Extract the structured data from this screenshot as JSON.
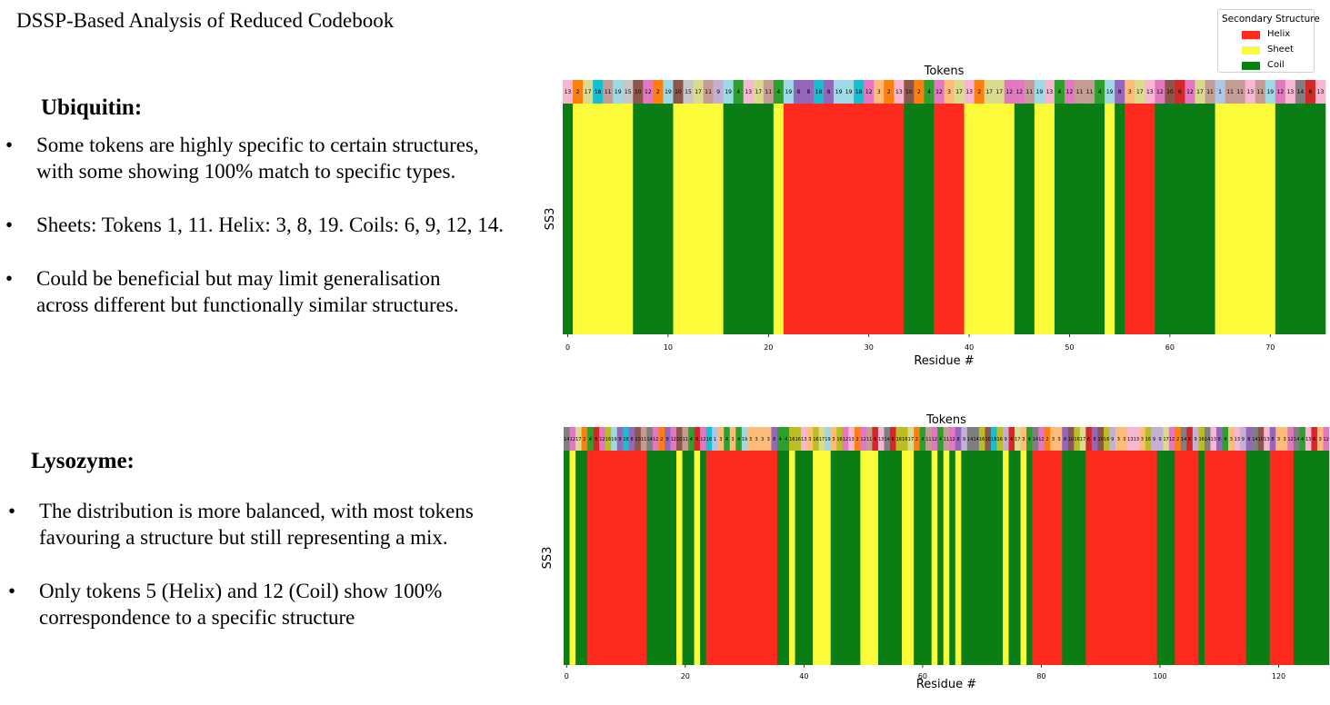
{
  "slide_title": "DSSP-Based Analysis of Reduced Codebook",
  "colors": {
    "helix": "#ff2a1e",
    "sheet": "#fbfb3a",
    "coil": "#0a7e14"
  },
  "legend": {
    "title": "Secondary Structure",
    "items": [
      {
        "label": "Helix",
        "color": "#ff2a1e"
      },
      {
        "label": "Sheet",
        "color": "#fbfb3a"
      },
      {
        "label": "Coil",
        "color": "#0a7e14"
      }
    ]
  },
  "ubiquitin": {
    "heading": "Ubiquitin:",
    "bullets": [
      {
        "line1": "Some tokens are highly specific to certain structures,",
        "line2": "with some showing 100% match to specific types."
      },
      {
        "line1": " Sheets: Tokens 1, 11. Helix: 3, 8, 19. Coils: 6, 9, 12, 14.",
        "line2": ""
      },
      {
        "line1": "Could be beneficial but may limit generalisation",
        "line2": "across different but functionally similar structures."
      }
    ]
  },
  "lysozyme": {
    "heading": "Lysozyme:",
    "bullets": [
      {
        "line1": "The distribution is more balanced, with most tokens",
        "line2": "favouring a structure but still representing a mix."
      },
      {
        "line1": "Only tokens 5 (Helix) and 12 (Coil) show 100%",
        "line2": "correspondence to a specific structure"
      }
    ]
  },
  "chart_data": [
    {
      "type": "heatmap",
      "title": "Tokens",
      "xlabel": "Residue #",
      "ylabel": "SS3",
      "xlim": [
        0,
        76
      ],
      "xticks": [
        0,
        10,
        20,
        30,
        40,
        50,
        60,
        70
      ],
      "ss_segments": [
        {
          "ss": "C",
          "start": 0,
          "end": 0
        },
        {
          "ss": "E",
          "start": 1,
          "end": 6
        },
        {
          "ss": "C",
          "start": 7,
          "end": 10
        },
        {
          "ss": "E",
          "start": 11,
          "end": 15
        },
        {
          "ss": "C",
          "start": 16,
          "end": 20
        },
        {
          "ss": "E",
          "start": 21,
          "end": 21
        },
        {
          "ss": "H",
          "start": 22,
          "end": 33
        },
        {
          "ss": "C",
          "start": 34,
          "end": 36
        },
        {
          "ss": "H",
          "start": 37,
          "end": 39
        },
        {
          "ss": "E",
          "start": 40,
          "end": 44
        },
        {
          "ss": "C",
          "start": 45,
          "end": 46
        },
        {
          "ss": "E",
          "start": 47,
          "end": 48
        },
        {
          "ss": "C",
          "start": 49,
          "end": 53
        },
        {
          "ss": "E",
          "start": 54,
          "end": 54
        },
        {
          "ss": "C",
          "start": 55,
          "end": 55
        },
        {
          "ss": "H",
          "start": 56,
          "end": 58
        },
        {
          "ss": "C",
          "start": 59,
          "end": 64
        },
        {
          "ss": "E",
          "start": 65,
          "end": 70
        },
        {
          "ss": "C",
          "start": 71,
          "end": 75
        }
      ],
      "tokens": [
        13,
        2,
        17,
        18,
        11,
        19,
        15,
        10,
        12,
        2,
        19,
        10,
        15,
        17,
        11,
        9,
        19,
        4,
        13,
        17,
        11,
        4,
        19,
        8,
        8,
        18,
        8,
        19,
        19,
        18,
        12,
        3,
        2,
        13,
        10,
        2,
        4,
        12,
        3,
        17,
        13,
        2,
        17,
        17,
        12,
        12,
        11,
        19,
        13,
        4,
        12,
        11,
        11,
        4,
        19,
        8,
        3,
        17,
        13,
        12,
        10,
        6,
        12,
        17,
        11,
        1,
        11,
        11,
        13,
        11,
        19,
        12,
        13,
        14,
        6,
        13
      ]
    },
    {
      "type": "heatmap",
      "title": "Tokens",
      "xlabel": "Residue #",
      "ylabel": "SS3",
      "xlim": [
        0,
        129
      ],
      "xticks": [
        0,
        20,
        40,
        60,
        80,
        100,
        120
      ],
      "ss_segments": [
        {
          "ss": "C",
          "start": 0,
          "end": 0
        },
        {
          "ss": "E",
          "start": 1,
          "end": 1
        },
        {
          "ss": "C",
          "start": 2,
          "end": 3
        },
        {
          "ss": "H",
          "start": 4,
          "end": 13
        },
        {
          "ss": "C",
          "start": 14,
          "end": 18
        },
        {
          "ss": "E",
          "start": 19,
          "end": 19
        },
        {
          "ss": "C",
          "start": 20,
          "end": 21
        },
        {
          "ss": "E",
          "start": 22,
          "end": 22
        },
        {
          "ss": "C",
          "start": 23,
          "end": 23
        },
        {
          "ss": "H",
          "start": 24,
          "end": 35
        },
        {
          "ss": "C",
          "start": 36,
          "end": 37
        },
        {
          "ss": "E",
          "start": 38,
          "end": 38
        },
        {
          "ss": "C",
          "start": 39,
          "end": 41
        },
        {
          "ss": "E",
          "start": 42,
          "end": 44
        },
        {
          "ss": "C",
          "start": 45,
          "end": 49
        },
        {
          "ss": "E",
          "start": 50,
          "end": 52
        },
        {
          "ss": "C",
          "start": 53,
          "end": 56
        },
        {
          "ss": "E",
          "start": 57,
          "end": 58
        },
        {
          "ss": "C",
          "start": 59,
          "end": 61
        },
        {
          "ss": "E",
          "start": 62,
          "end": 62
        },
        {
          "ss": "C",
          "start": 63,
          "end": 63
        },
        {
          "ss": "E",
          "start": 64,
          "end": 64
        },
        {
          "ss": "C",
          "start": 65,
          "end": 65
        },
        {
          "ss": "E",
          "start": 66,
          "end": 66
        },
        {
          "ss": "C",
          "start": 67,
          "end": 73
        },
        {
          "ss": "E",
          "start": 74,
          "end": 74
        },
        {
          "ss": "C",
          "start": 75,
          "end": 76
        },
        {
          "ss": "E",
          "start": 77,
          "end": 77
        },
        {
          "ss": "C",
          "start": 78,
          "end": 78
        },
        {
          "ss": "H",
          "start": 79,
          "end": 83
        },
        {
          "ss": "C",
          "start": 84,
          "end": 87
        },
        {
          "ss": "H",
          "start": 88,
          "end": 99
        },
        {
          "ss": "C",
          "start": 100,
          "end": 102
        },
        {
          "ss": "H",
          "start": 103,
          "end": 106
        },
        {
          "ss": "C",
          "start": 107,
          "end": 107
        },
        {
          "ss": "H",
          "start": 108,
          "end": 114
        },
        {
          "ss": "C",
          "start": 115,
          "end": 118
        },
        {
          "ss": "H",
          "start": 119,
          "end": 122
        },
        {
          "ss": "C",
          "start": 123,
          "end": 128
        }
      ],
      "tokens": [
        14,
        12,
        17,
        2,
        4,
        6,
        12,
        16,
        19,
        8,
        18,
        8,
        10,
        11,
        14,
        12,
        2,
        8,
        12,
        10,
        11,
        4,
        6,
        12,
        18,
        1,
        3,
        4,
        3,
        4,
        19,
        3,
        3,
        3,
        3,
        8,
        4,
        4,
        16,
        16,
        13,
        3,
        16,
        17,
        19,
        3,
        16,
        12,
        13,
        2,
        12,
        11,
        6,
        13,
        14,
        6,
        16,
        16,
        17,
        2,
        4,
        11,
        12,
        4,
        11,
        12,
        8,
        9,
        14,
        14,
        16,
        10,
        18,
        16,
        9,
        6,
        17,
        3,
        4,
        14,
        12,
        2,
        3,
        3,
        8,
        10,
        16,
        17,
        6,
        8,
        10,
        16,
        9,
        3,
        3,
        13,
        13,
        3,
        16,
        9,
        9,
        17,
        12,
        2,
        14,
        6,
        9,
        16,
        14,
        13,
        8,
        4,
        3,
        13,
        9,
        8,
        14,
        10,
        13,
        8,
        3,
        3,
        12,
        14,
        4,
        13,
        6,
        3,
        12
      ]
    }
  ]
}
